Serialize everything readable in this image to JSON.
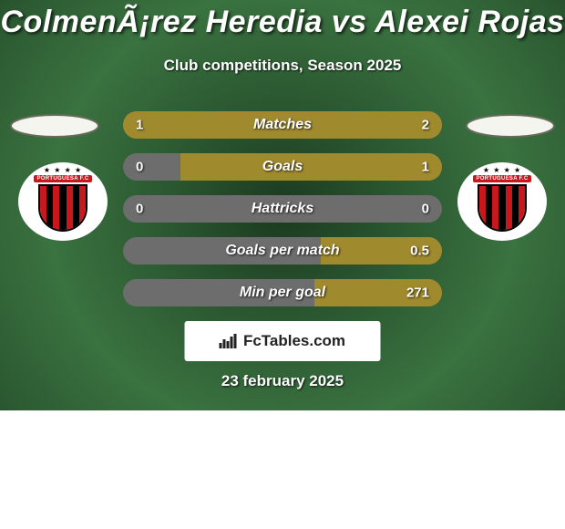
{
  "title": "ColmenÃ¡rez Heredia vs Alexei Rojas",
  "subtitle": "Club competitions, Season 2025",
  "footer_date": "23 february 2025",
  "footer_logo_text": "FcTables.com",
  "colors": {
    "bg_grad_stops": [
      "#1b3a1f",
      "#2c5a32",
      "#3a7240",
      "#2c5a32",
      "#1b3a1f"
    ],
    "avatar_frame_fill": "#f5f5f0",
    "avatar_frame_stroke": "#6a6a5a",
    "badge_bg": "#ffffff",
    "stat_base": "#6d6d6d",
    "stat_fill": "#a08a2e",
    "shield_red": "#c8181e",
    "shield_black": "#000000"
  },
  "stats": [
    {
      "label": "Matches",
      "left_val": "1",
      "right_val": "2",
      "left_pct": 33,
      "right_pct": 67
    },
    {
      "label": "Goals",
      "left_val": "0",
      "right_val": "1",
      "left_pct": 0,
      "right_pct": 82
    },
    {
      "label": "Hattricks",
      "left_val": "0",
      "right_val": "0",
      "left_pct": 0,
      "right_pct": 0
    },
    {
      "label": "Goals per match",
      "left_val": "",
      "right_val": "0.5",
      "left_pct": 0,
      "right_pct": 38
    },
    {
      "label": "Min per goal",
      "left_val": "",
      "right_val": "271",
      "left_pct": 0,
      "right_pct": 40
    }
  ],
  "crest": {
    "banner_text": "PORTUGUESA F.C",
    "stripes": [
      "#c8181e",
      "#000000",
      "#c8181e",
      "#000000",
      "#c8181e",
      "#000000",
      "#c8181e"
    ]
  }
}
